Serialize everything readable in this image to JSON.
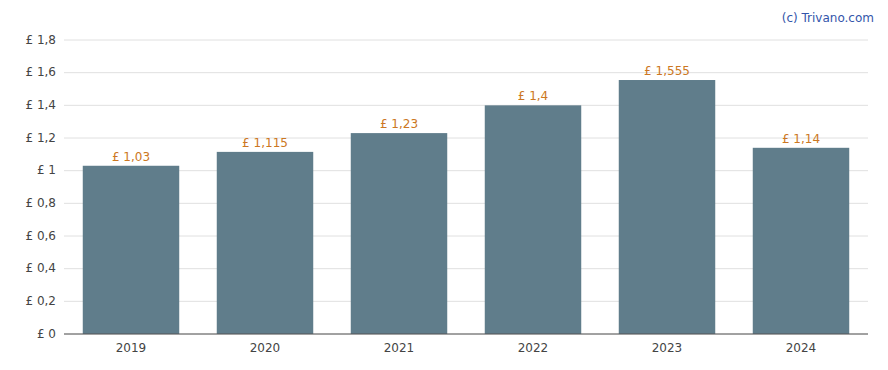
{
  "chart_data": {
    "type": "bar",
    "categories": [
      "2019",
      "2020",
      "2021",
      "2022",
      "2023",
      "2024"
    ],
    "values": [
      1.03,
      1.115,
      1.23,
      1.4,
      1.555,
      1.14
    ],
    "value_labels": [
      "£ 1,03",
      "£ 1,115",
      "£ 1,23",
      "£ 1,4",
      "£ 1,555",
      "£ 1,14"
    ],
    "data_labels": true,
    "color": "#607d8b",
    "ylim": [
      0,
      1.8
    ],
    "yticks": [
      {
        "value": 0,
        "label": "£ 0"
      },
      {
        "value": 0.2,
        "label": "£ 0,2"
      },
      {
        "value": 0.4,
        "label": "£ 0,4"
      },
      {
        "value": 0.6,
        "label": "£ 0,6"
      },
      {
        "value": 0.8,
        "label": "£ 0,8"
      },
      {
        "value": 1,
        "label": "£ 1"
      },
      {
        "value": 1.2,
        "label": "£ 1,2"
      },
      {
        "value": 1.4,
        "label": "£ 1,4"
      },
      {
        "value": 1.6,
        "label": "£ 1,6"
      },
      {
        "value": 1.8,
        "label": "£ 1,8"
      }
    ],
    "grid": true,
    "annotations": [
      "(c) Trivano.com"
    ]
  }
}
